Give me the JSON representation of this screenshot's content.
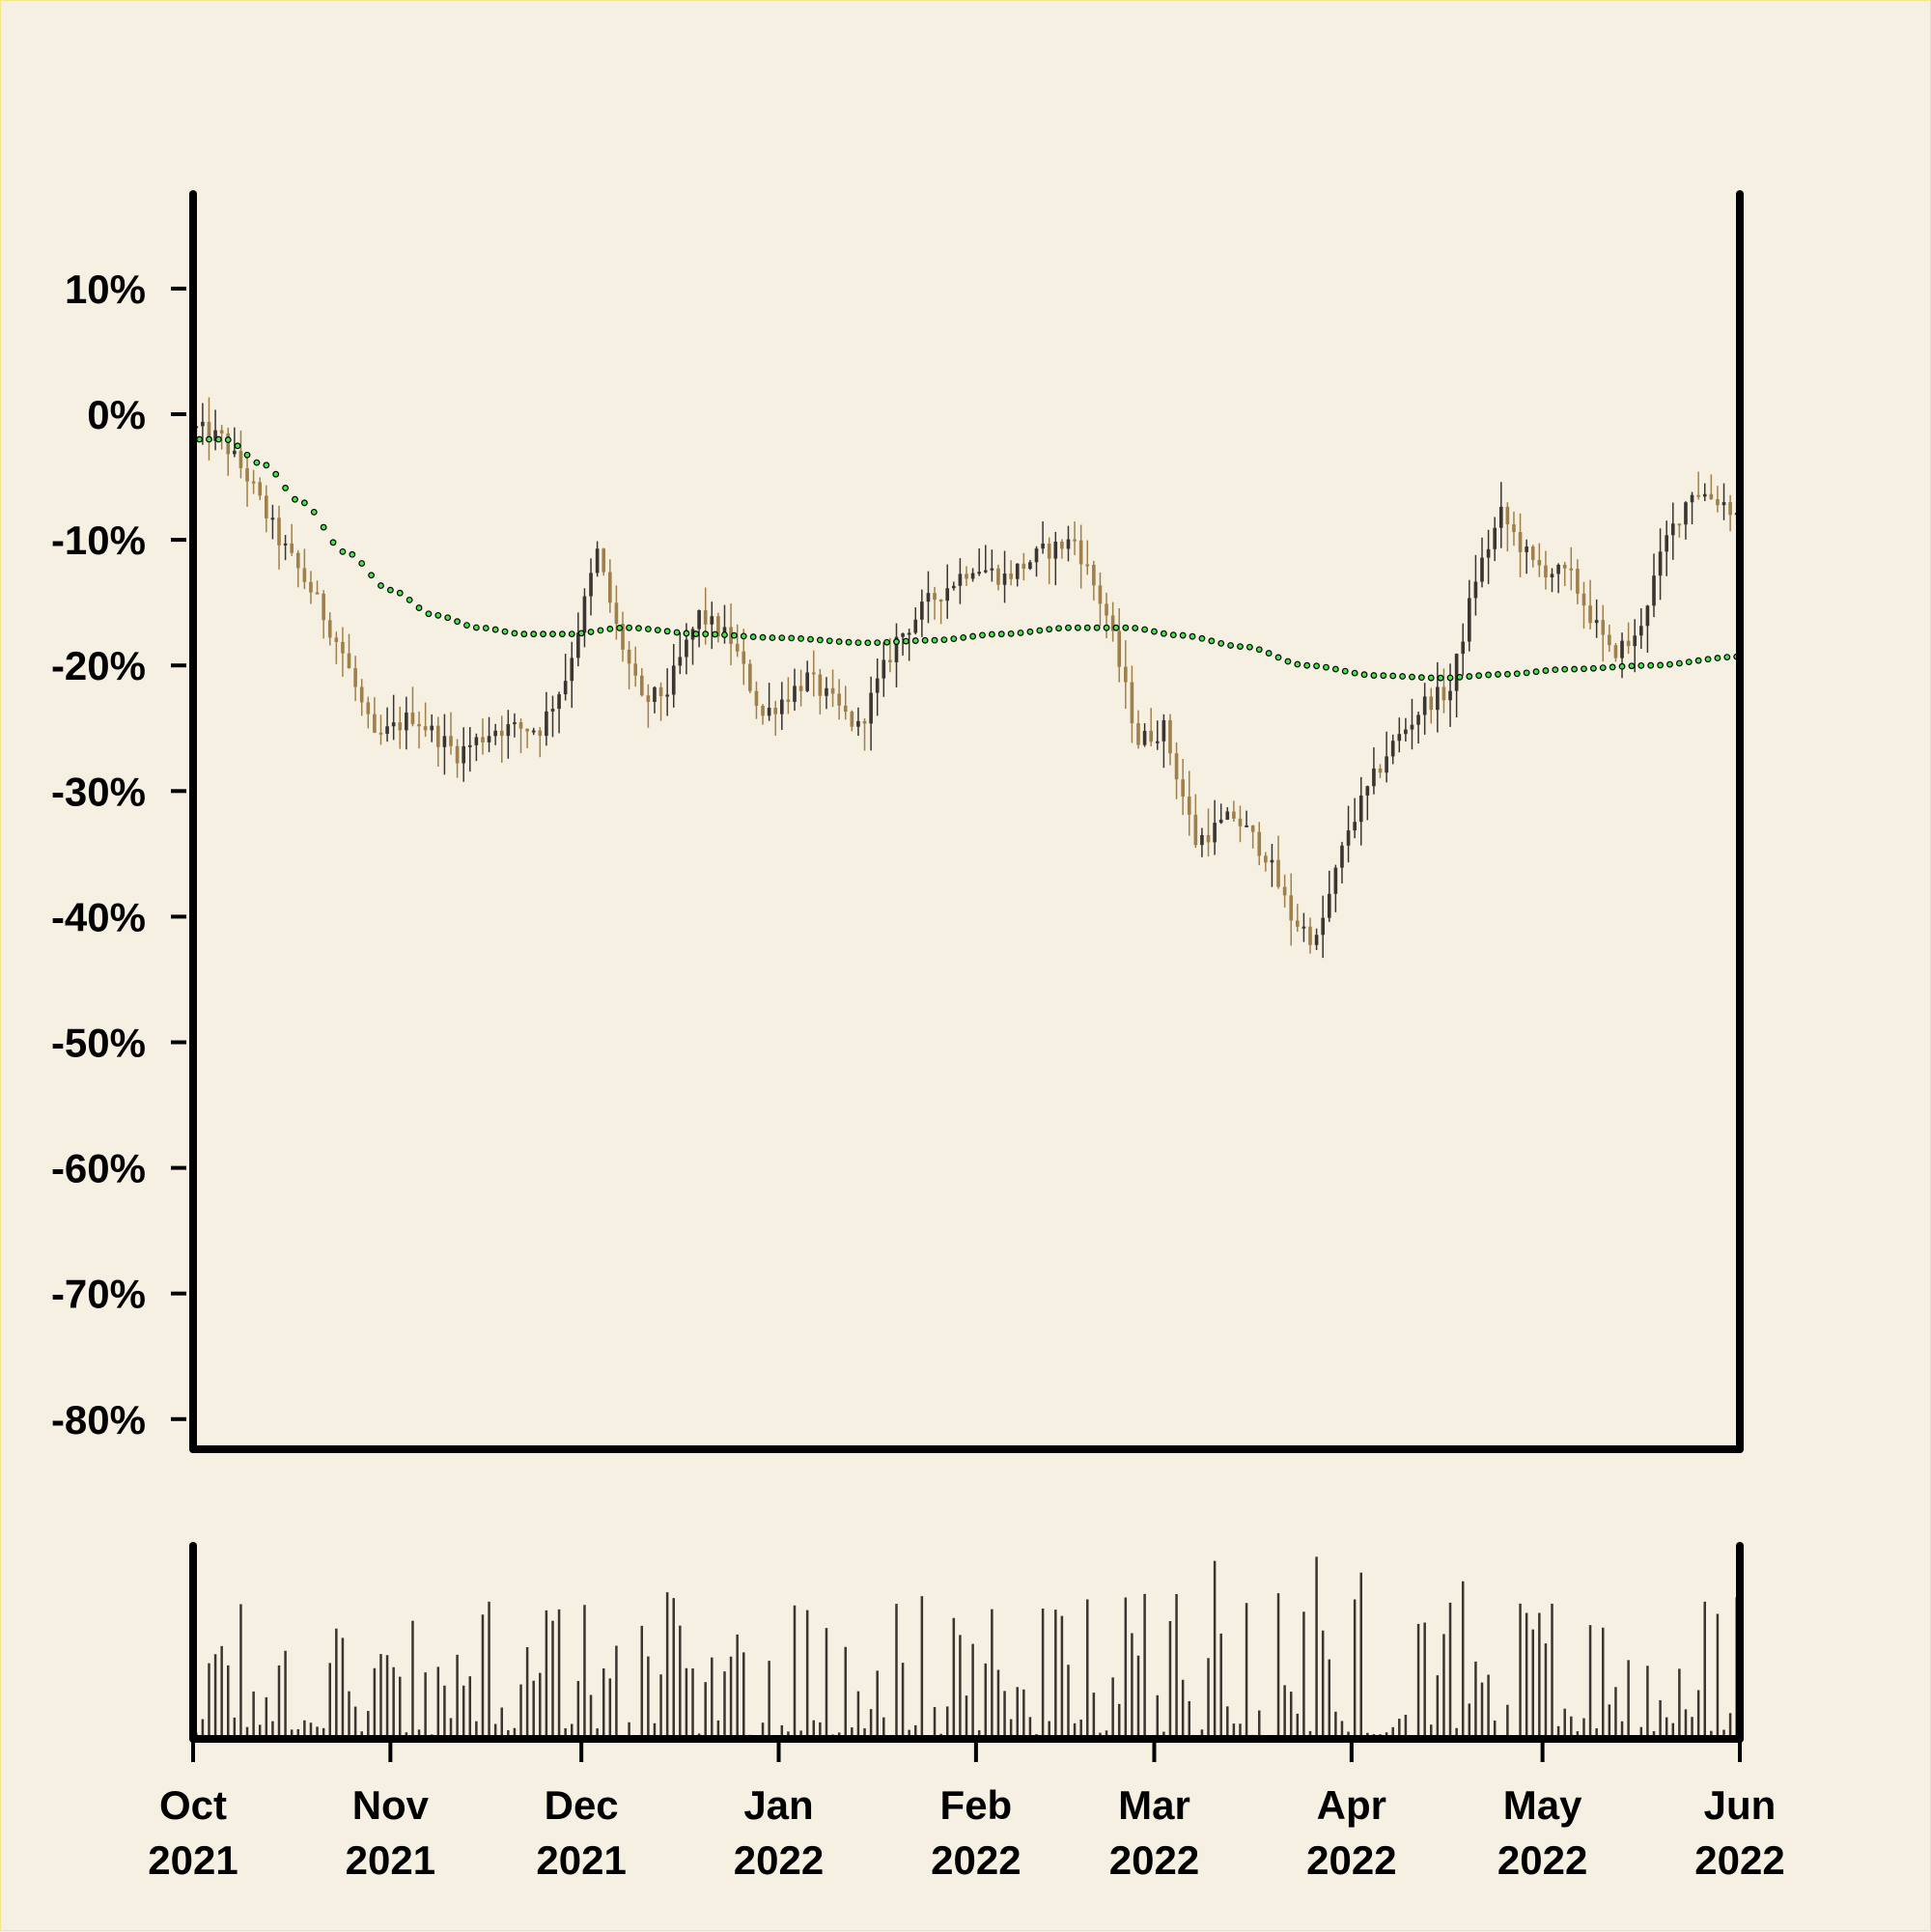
{
  "chart_data": {
    "type": "candlestick",
    "y_axis": {
      "unit": "%",
      "ylim": [
        -80,
        10
      ],
      "ticks": [
        10,
        0,
        -10,
        -20,
        -30,
        -40,
        -50,
        -60,
        -70,
        -80
      ],
      "tick_labels": [
        "10%",
        "0%",
        "-10%",
        "-20%",
        "-30%",
        "-40%",
        "-50%",
        "-60%",
        "-70%",
        "-80%"
      ]
    },
    "x_axis": {
      "xlim": [
        "2021-10-01",
        "2022-06-01"
      ],
      "ticks": [
        {
          "date": "2021-10-01",
          "month": "Oct",
          "year": "2021"
        },
        {
          "date": "2021-11-01",
          "month": "Nov",
          "year": "2021"
        },
        {
          "date": "2021-12-01",
          "month": "Dec",
          "year": "2021"
        },
        {
          "date": "2022-01-01",
          "month": "Jan",
          "year": "2022"
        },
        {
          "date": "2022-02-01",
          "month": "Feb",
          "year": "2022"
        },
        {
          "date": "2022-03-01",
          "month": "Mar",
          "year": "2022"
        },
        {
          "date": "2022-04-01",
          "month": "Apr",
          "year": "2022"
        },
        {
          "date": "2022-05-01",
          "month": "May",
          "year": "2022"
        },
        {
          "date": "2022-06-01",
          "month": "Jun",
          "year": "2022"
        }
      ]
    },
    "price_path": [
      [
        "2021-10-01",
        -1
      ],
      [
        "2021-10-06",
        -2
      ],
      [
        "2021-10-10",
        -5
      ],
      [
        "2021-10-15",
        -10
      ],
      [
        "2021-10-20",
        -14
      ],
      [
        "2021-10-25",
        -19
      ],
      [
        "2021-10-30",
        -26
      ],
      [
        "2021-11-05",
        -24
      ],
      [
        "2021-11-12",
        -27
      ],
      [
        "2021-11-18",
        -25
      ],
      [
        "2021-11-25",
        -25
      ],
      [
        "2021-11-29",
        -21
      ],
      [
        "2021-12-04",
        -11
      ],
      [
        "2021-12-07",
        -17
      ],
      [
        "2021-12-11",
        -23
      ],
      [
        "2021-12-15",
        -22
      ],
      [
        "2021-12-20",
        -16
      ],
      [
        "2021-12-25",
        -18
      ],
      [
        "2021-12-30",
        -24
      ],
      [
        "2022-01-06",
        -21
      ],
      [
        "2022-01-14",
        -25
      ],
      [
        "2022-01-20",
        -18
      ],
      [
        "2022-01-25",
        -15
      ],
      [
        "2022-02-01",
        -12
      ],
      [
        "2022-02-06",
        -13
      ],
      [
        "2022-02-12",
        -11
      ],
      [
        "2022-02-17",
        -10
      ],
      [
        "2022-02-22",
        -16
      ],
      [
        "2022-02-27",
        -26
      ],
      [
        "2022-03-03",
        -25
      ],
      [
        "2022-03-08",
        -34
      ],
      [
        "2022-03-14",
        -32
      ],
      [
        "2022-03-19",
        -35
      ],
      [
        "2022-03-23",
        -40
      ],
      [
        "2022-03-27",
        -42
      ],
      [
        "2022-04-01",
        -33
      ],
      [
        "2022-04-07",
        -27
      ],
      [
        "2022-04-13",
        -23
      ],
      [
        "2022-04-17",
        -22
      ],
      [
        "2022-04-21",
        -13
      ],
      [
        "2022-04-25",
        -8
      ],
      [
        "2022-04-30",
        -12
      ],
      [
        "2022-05-06",
        -13
      ],
      [
        "2022-05-12",
        -19
      ],
      [
        "2022-05-16",
        -18
      ],
      [
        "2022-05-21",
        -10
      ],
      [
        "2022-05-25",
        -6
      ],
      [
        "2022-05-30",
        -7
      ],
      [
        "2022-06-01",
        -8
      ]
    ],
    "moving_average": [
      [
        "2021-10-01",
        -2
      ],
      [
        "2021-10-06",
        -2
      ],
      [
        "2021-10-12",
        -4
      ],
      [
        "2021-10-18",
        -7
      ],
      [
        "2021-10-25",
        -11
      ],
      [
        "2021-11-01",
        -14
      ],
      [
        "2021-11-08",
        -16
      ],
      [
        "2021-11-15",
        -17
      ],
      [
        "2021-11-22",
        -17.5
      ],
      [
        "2021-11-29",
        -17.5
      ],
      [
        "2021-12-08",
        -17
      ],
      [
        "2021-12-20",
        -17.5
      ],
      [
        "2022-01-01",
        -17.8
      ],
      [
        "2022-01-15",
        -18.2
      ],
      [
        "2022-01-25",
        -18
      ],
      [
        "2022-02-05",
        -17.5
      ],
      [
        "2022-02-16",
        -17
      ],
      [
        "2022-02-25",
        -17
      ],
      [
        "2022-03-05",
        -17.6
      ],
      [
        "2022-03-15",
        -18.5
      ],
      [
        "2022-03-25",
        -20
      ],
      [
        "2022-04-05",
        -20.8
      ],
      [
        "2022-04-15",
        -21
      ],
      [
        "2022-04-25",
        -20.7
      ],
      [
        "2022-05-05",
        -20.3
      ],
      [
        "2022-05-18",
        -20
      ],
      [
        "2022-06-01",
        -19.3
      ]
    ],
    "colors": {
      "up_candle": "#3a3530",
      "down_candle": "#a0804a",
      "moving_average_fill": "#49e449",
      "moving_average_edge": "#000000",
      "volume_bar": "#3a3530",
      "axis": "#000000",
      "background": "#f5f0e1"
    },
    "volume_panel": {
      "type": "bar",
      "y_axis_labels": false
    },
    "grid": false,
    "legend": "none"
  }
}
